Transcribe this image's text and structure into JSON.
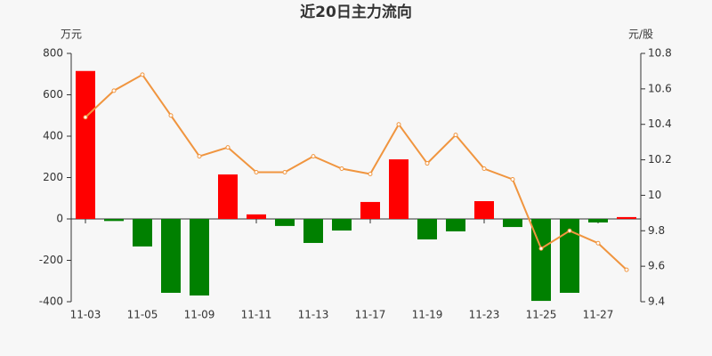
{
  "chart_data": {
    "type": "bar",
    "title": "近20日主力流向",
    "y_label": "万元",
    "y2_label": "元/股",
    "categories": [
      "11-03",
      null,
      "11-05",
      null,
      "11-09",
      null,
      "11-11",
      null,
      "11-13",
      null,
      "11-17",
      null,
      "11-19",
      null,
      "11-23",
      null,
      "11-25",
      null,
      "11-27",
      null
    ],
    "series": [
      {
        "type": "bar",
        "positive_color": "#ff0000",
        "negative_color": "#008000",
        "values": [
          715,
          -10,
          -133,
          -357,
          -370,
          215,
          22,
          -34,
          -116,
          -56,
          82,
          288,
          -99,
          -60,
          86,
          -39,
          -396,
          -357,
          -17,
          9
        ]
      },
      {
        "type": "line",
        "axis": "y2",
        "color": "#f0953f",
        "values": [
          10.44,
          10.59,
          10.68,
          10.45,
          10.22,
          10.27,
          10.13,
          10.13,
          10.22,
          10.15,
          10.12,
          10.4,
          10.18,
          10.34,
          10.15,
          10.09,
          9.7,
          9.8,
          9.73,
          9.58
        ]
      }
    ],
    "ylim": [
      -400,
      800
    ],
    "yticks": [
      -400,
      -200,
      0,
      200,
      400,
      600,
      800
    ],
    "y2lim": [
      9.4,
      10.8
    ],
    "y2ticks": [
      9.4,
      9.6,
      9.8,
      10,
      10.2,
      10.4,
      10.6,
      10.8
    ]
  }
}
